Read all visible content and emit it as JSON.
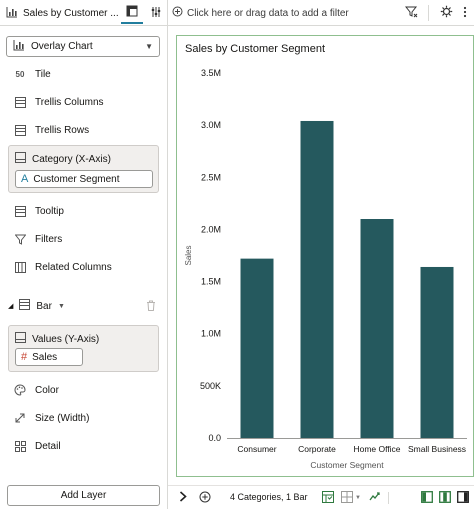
{
  "header": {
    "vis_title": "Sales by Customer ...",
    "filter_placeholder": "Click here or drag data to add a filter"
  },
  "left_panel": {
    "chart_type": "Overlay Chart",
    "tile_label": "Tile",
    "trellis_columns_label": "Trellis Columns",
    "trellis_rows_label": "Trellis Rows",
    "category_label": "Category (X-Axis)",
    "category_item": "Customer Segment",
    "tooltip_label": "Tooltip",
    "filters_label": "Filters",
    "related_columns_label": "Related Columns",
    "layer_label": "Bar",
    "values_label": "Values (Y-Axis)",
    "values_item": "Sales",
    "color_label": "Color",
    "size_label": "Size (Width)",
    "detail_label": "Detail",
    "add_layer_label": "Add Layer"
  },
  "footer": {
    "status": "4 Categories, 1 Bar"
  },
  "colors": {
    "bar": "#25595e",
    "accent": "#227e9e"
  },
  "chart_data": {
    "type": "bar",
    "title": "Sales by Customer Segment",
    "xlabel": "Customer Segment",
    "ylabel": "Sales",
    "categories": [
      "Consumer",
      "Corporate",
      "Home Office",
      "Small Business"
    ],
    "values": [
      1720000,
      3040000,
      2100000,
      1640000
    ],
    "ylim": [
      0,
      3500000
    ],
    "yticks": [
      {
        "value": 0,
        "label": "0.0"
      },
      {
        "value": 500000,
        "label": "500K"
      },
      {
        "value": 1000000,
        "label": "1.0M"
      },
      {
        "value": 1500000,
        "label": "1.5M"
      },
      {
        "value": 2000000,
        "label": "2.0M"
      },
      {
        "value": 2500000,
        "label": "2.5M"
      },
      {
        "value": 3000000,
        "label": "3.0M"
      },
      {
        "value": 3500000,
        "label": "3.5M"
      }
    ],
    "grid": false,
    "legend": "none"
  }
}
